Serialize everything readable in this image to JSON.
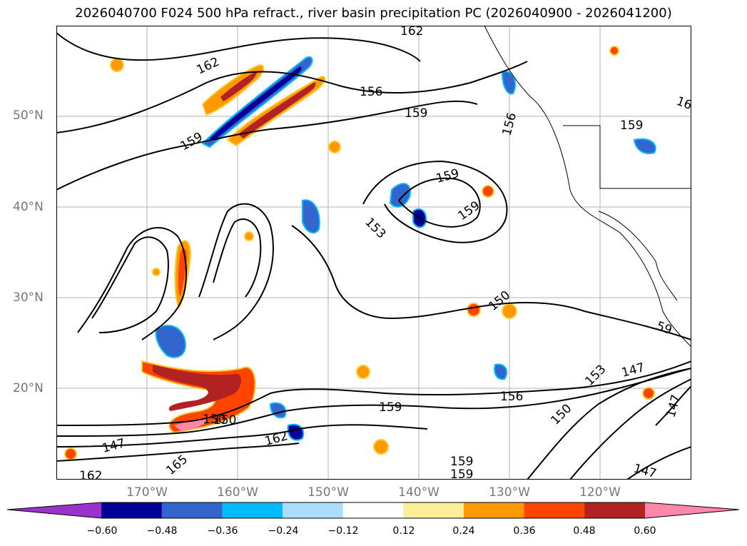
{
  "title": "2026040700 F024 500 hPa refract., river basin precipitation PC (2026040900 - 2026041200)",
  "lat_ticks": [
    "50°N",
    "40°N",
    "30°N",
    "20°N"
  ],
  "lon_ticks": [
    "170°W",
    "160°W",
    "150°W",
    "140°W",
    "130°W",
    "120°W"
  ],
  "contour_labels": [
    "162",
    "162",
    "156",
    "159",
    "159",
    "156",
    "159",
    "159",
    "153",
    "150",
    "150",
    "159",
    "156",
    "159",
    "162",
    "147",
    "165",
    "162",
    "150",
    "153",
    "147",
    "147",
    "147",
    "159",
    "159",
    "150",
    "16",
    "59"
  ],
  "colorbar": {
    "ticks": [
      "−0.60",
      "−0.48",
      "−0.36",
      "−0.24",
      "−0.12",
      "0.12",
      "0.24",
      "0.36",
      "0.48",
      "0.60"
    ],
    "colors": [
      "#9933cc",
      "#000099",
      "#3366cc",
      "#00bbff",
      "#aaddff",
      "#ffffff",
      "#ffee99",
      "#ff9900",
      "#ff4400",
      "#b22222",
      "#ff88aa"
    ]
  }
}
